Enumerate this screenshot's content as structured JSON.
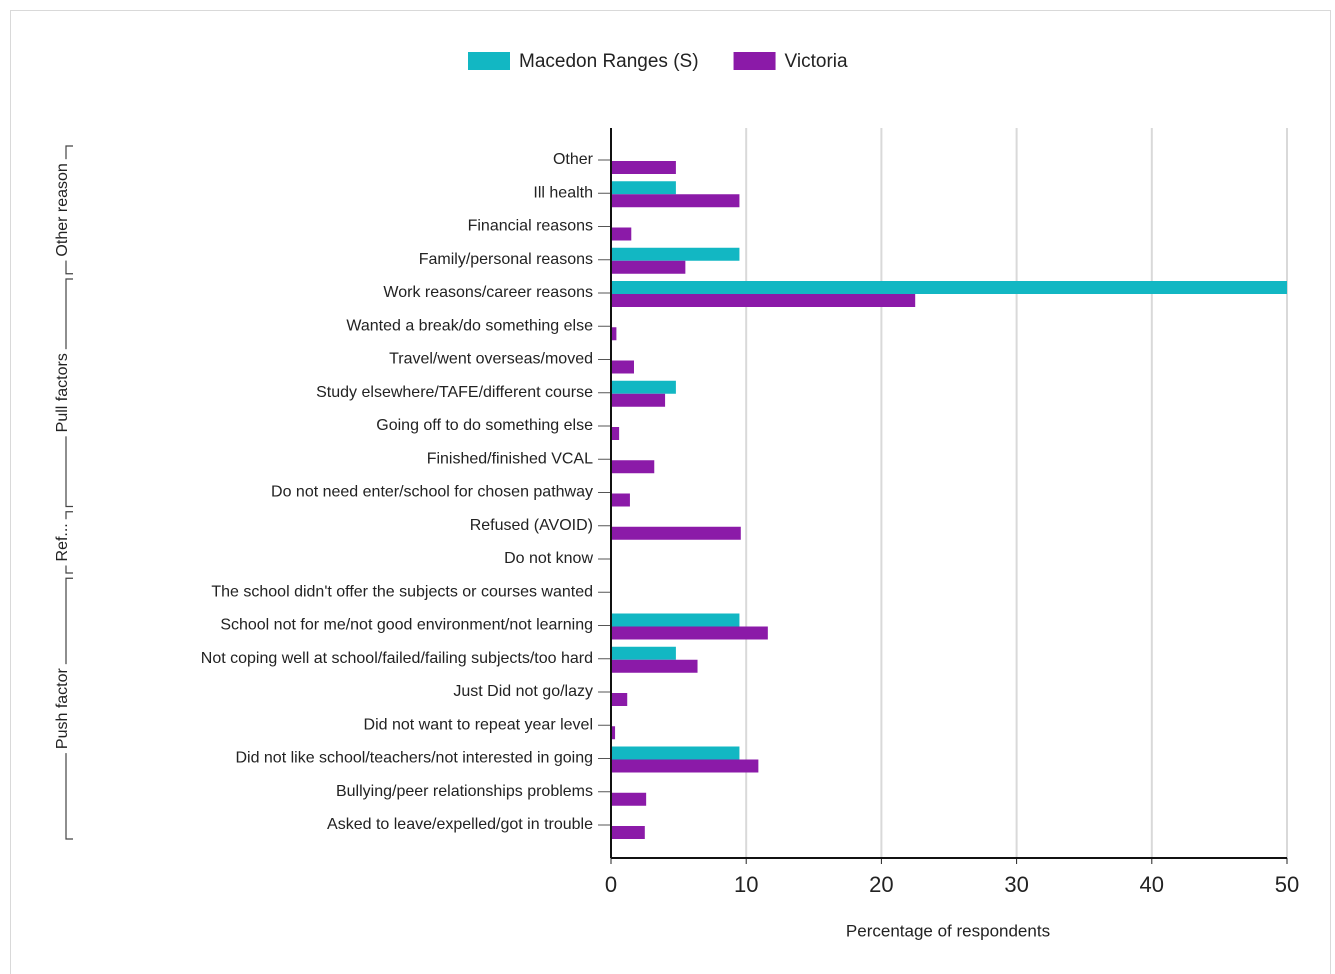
{
  "chart_data": {
    "type": "hbar",
    "groups": [
      {
        "label": "Other reason",
        "categories": [
          "Other",
          "Ill health",
          "Financial reasons",
          "Family/personal reasons"
        ]
      },
      {
        "label": "Pull factors",
        "categories": [
          "Work reasons/career reasons",
          "Wanted a break/do something else",
          "Travel/went overseas/moved",
          "Study elsewhere/TAFE/different course",
          "Going off to do something else",
          "Finished/finished VCAL",
          "Do not need enter/school for chosen pathway"
        ]
      },
      {
        "label": "Ref...",
        "categories": [
          "Refused (AVOID)",
          "Do not know"
        ]
      },
      {
        "label": "Push factor",
        "categories": [
          "The school didn't offer the subjects or courses wanted",
          "School not for me/not good environment/not learning",
          "Not coping well at school/failed/failing subjects/too hard",
          "Just Did not go/lazy",
          "Did not want to repeat year level",
          "Did not like school/teachers/not interested in going",
          "Bullying/peer relationships problems",
          "Asked to leave/expelled/got in trouble"
        ]
      }
    ],
    "series": [
      {
        "name": "Macedon Ranges (S)",
        "color": "#12b7c3",
        "values": [
          0,
          4.8,
          0,
          9.5,
          50,
          0,
          0,
          4.8,
          0,
          0,
          0,
          0,
          0,
          0,
          9.5,
          4.8,
          0,
          0,
          9.5,
          0,
          0
        ]
      },
      {
        "name": "Victoria",
        "color": "#8b1aa8",
        "values": [
          4.8,
          9.5,
          1.5,
          5.5,
          22.5,
          0.4,
          1.7,
          4.0,
          0.6,
          3.2,
          1.4,
          9.6,
          0,
          0,
          11.6,
          6.4,
          1.2,
          0.3,
          10.9,
          2.6,
          2.5
        ]
      }
    ],
    "xlabel": "Percentage of respondents",
    "xlim": [
      0,
      50
    ],
    "xticks": [
      0,
      10,
      20,
      30,
      40,
      50
    ],
    "grid": true,
    "legend": "top"
  }
}
